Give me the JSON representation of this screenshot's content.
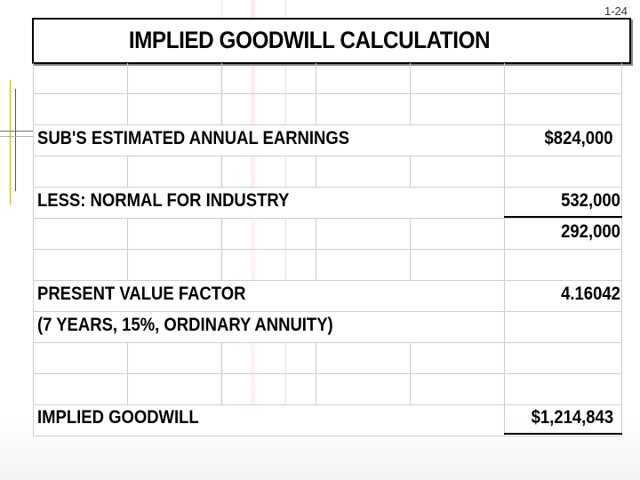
{
  "slide_number": "1-24",
  "title": "IMPLIED GOODWILL CALCULATION",
  "rows": {
    "earnings": {
      "label": "SUB'S ESTIMATED ANNUAL EARNINGS",
      "value": "$824,000"
    },
    "normal": {
      "label": "LESS: NORMAL FOR INDUSTRY",
      "value": "532,000"
    },
    "excess": {
      "value": "292,000"
    },
    "pv_factor": {
      "label": "PRESENT VALUE FACTOR",
      "value": "4.16042"
    },
    "pv_note": {
      "label": "(7 YEARS, 15%, ORDINARY ANNUITY)"
    },
    "goodwill": {
      "label": "IMPLIED GOODWILL",
      "value": "$1,214,843"
    }
  }
}
